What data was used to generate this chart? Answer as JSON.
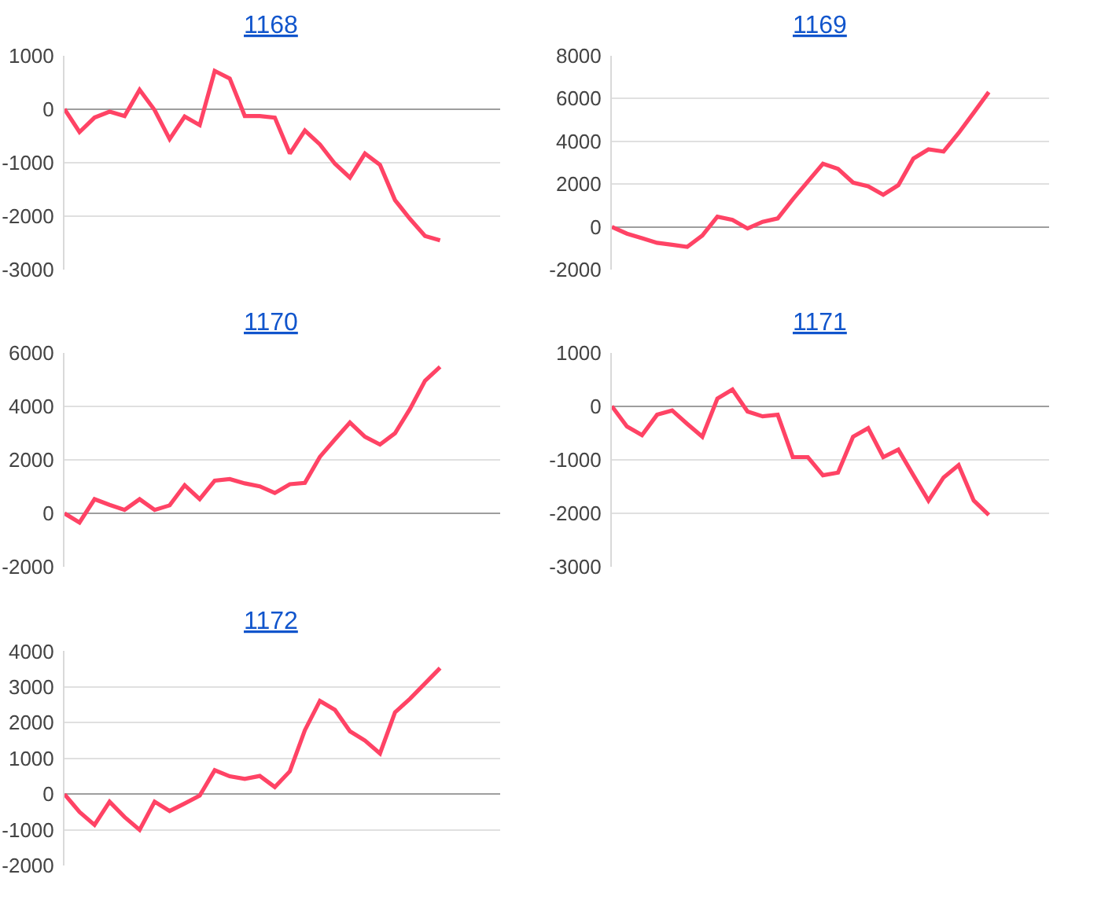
{
  "chart_data": [
    {
      "type": "line",
      "title": "1168",
      "color": "#ff4365",
      "grid": "y",
      "tick_labels": "y",
      "ylim": [
        -3000,
        1000
      ],
      "yticks": [
        -3000,
        -2000,
        -1000,
        0,
        1000
      ],
      "categories": [
        null,
        null,
        null,
        null,
        null,
        null,
        null,
        null,
        null,
        null,
        null,
        null,
        null,
        null,
        null,
        null,
        null,
        null,
        null,
        null,
        null,
        null,
        null,
        null,
        null,
        null,
        null,
        null,
        null,
        null
      ],
      "values": [
        0,
        -430,
        -160,
        -50,
        -130,
        360,
        -20,
        -560,
        -140,
        -300,
        710,
        570,
        -130,
        -130,
        -160,
        -830,
        -400,
        -660,
        -1020,
        -1280,
        -830,
        -1040,
        -1700,
        -2050,
        -2370,
        -2450,
        null,
        null,
        null,
        null
      ]
    },
    {
      "type": "line",
      "title": "1169",
      "color": "#ff4365",
      "grid": "y",
      "tick_labels": "y",
      "ylim": [
        -2000,
        8000
      ],
      "yticks": [
        -2000,
        0,
        2000,
        4000,
        6000,
        8000
      ],
      "categories": [
        null,
        null,
        null,
        null,
        null,
        null,
        null,
        null,
        null,
        null,
        null,
        null,
        null,
        null,
        null,
        null,
        null,
        null,
        null,
        null,
        null,
        null,
        null,
        null,
        null,
        null,
        null,
        null,
        null,
        null
      ],
      "values": [
        0,
        -310,
        -520,
        -740,
        -830,
        -930,
        -400,
        480,
        330,
        -70,
        240,
        400,
        1290,
        2120,
        2950,
        2710,
        2070,
        1900,
        1500,
        1950,
        3190,
        3620,
        3520,
        4380,
        5330,
        6290,
        null,
        null,
        null,
        null
      ]
    },
    {
      "type": "line",
      "title": "1170",
      "color": "#ff4365",
      "grid": "y",
      "tick_labels": "y",
      "ylim": [
        -2000,
        6000
      ],
      "yticks": [
        -2000,
        0,
        2000,
        4000,
        6000
      ],
      "categories": [
        null,
        null,
        null,
        null,
        null,
        null,
        null,
        null,
        null,
        null,
        null,
        null,
        null,
        null,
        null,
        null,
        null,
        null,
        null,
        null,
        null,
        null,
        null,
        null,
        null,
        null,
        null,
        null,
        null,
        null
      ],
      "values": [
        0,
        -340,
        530,
        320,
        130,
        530,
        130,
        300,
        1050,
        530,
        1220,
        1280,
        1120,
        1010,
        760,
        1090,
        1140,
        2110,
        2760,
        3390,
        2860,
        2570,
        2990,
        3900,
        4950,
        5470,
        null,
        null,
        null,
        null
      ]
    },
    {
      "type": "line",
      "title": "1171",
      "color": "#ff4365",
      "grid": "y",
      "tick_labels": "y",
      "ylim": [
        -3000,
        1000
      ],
      "yticks": [
        -3000,
        -2000,
        -1000,
        0,
        1000
      ],
      "categories": [
        null,
        null,
        null,
        null,
        null,
        null,
        null,
        null,
        null,
        null,
        null,
        null,
        null,
        null,
        null,
        null,
        null,
        null,
        null,
        null,
        null,
        null,
        null,
        null,
        null,
        null,
        null,
        null,
        null,
        null
      ],
      "values": [
        0,
        -380,
        -540,
        -160,
        -80,
        -330,
        -570,
        140,
        310,
        -100,
        -190,
        -160,
        -950,
        -950,
        -1290,
        -1240,
        -570,
        -410,
        -950,
        -810,
        -1290,
        -1760,
        -1330,
        -1100,
        -1760,
        -2030,
        null,
        null,
        null,
        null
      ]
    },
    {
      "type": "line",
      "title": "1172",
      "color": "#ff4365",
      "grid": "y",
      "tick_labels": "y",
      "ylim": [
        -2000,
        4000
      ],
      "yticks": [
        -2000,
        -1000,
        0,
        1000,
        2000,
        3000,
        4000
      ],
      "categories": [
        null,
        null,
        null,
        null,
        null,
        null,
        null,
        null,
        null,
        null,
        null,
        null,
        null,
        null,
        null,
        null,
        null,
        null,
        null,
        null,
        null,
        null,
        null,
        null,
        null,
        null,
        null,
        null,
        null,
        null
      ],
      "values": [
        0,
        -500,
        -860,
        -210,
        -640,
        -1000,
        -210,
        -470,
        -260,
        -40,
        670,
        500,
        430,
        510,
        200,
        640,
        1790,
        2610,
        2360,
        1760,
        1500,
        1140,
        2290,
        2670,
        3100,
        3530,
        null,
        null,
        null,
        null
      ]
    }
  ]
}
